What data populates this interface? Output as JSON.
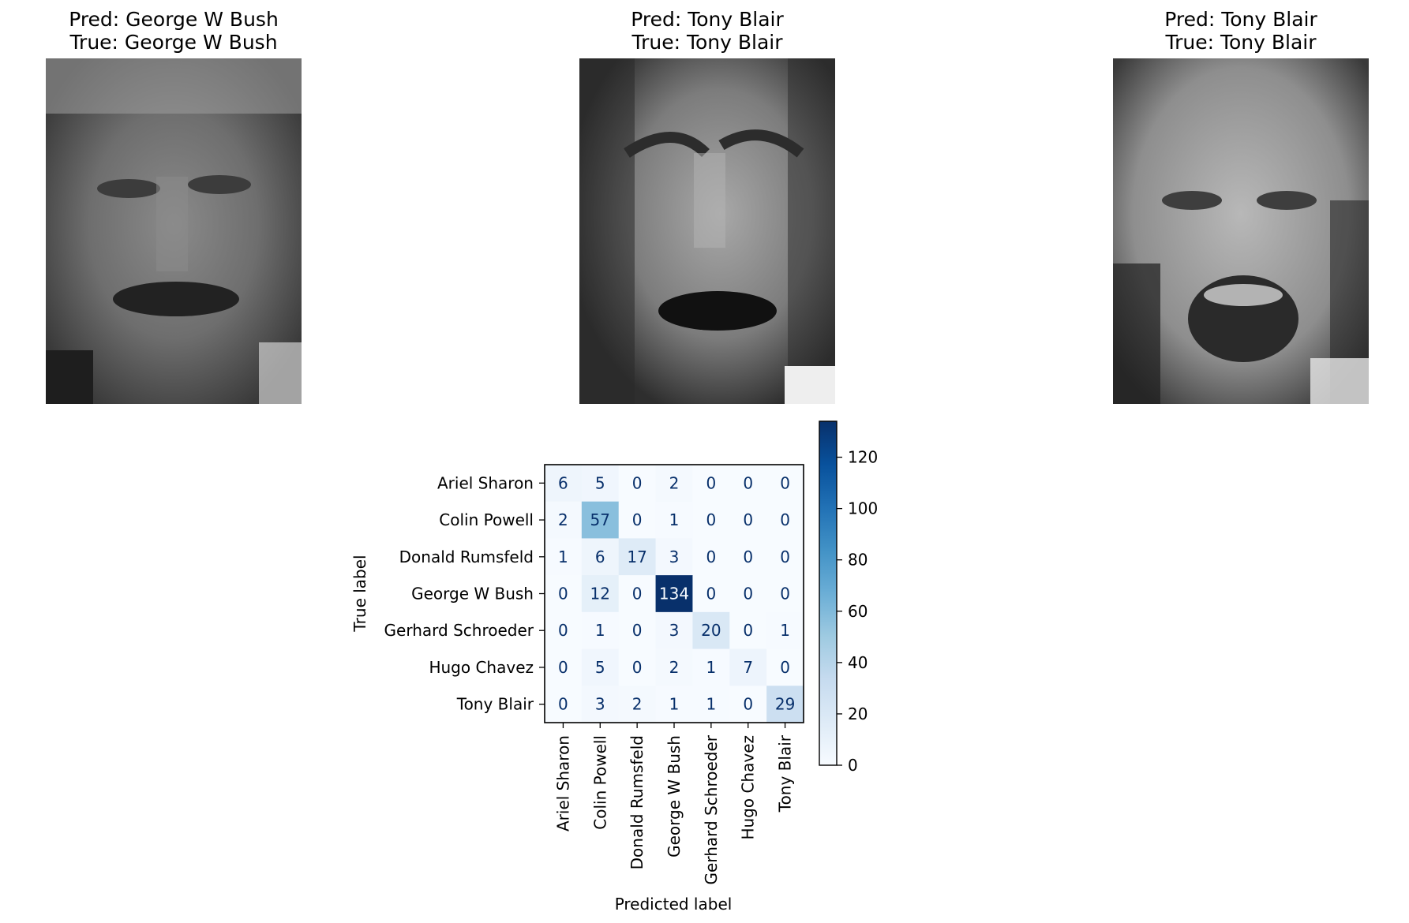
{
  "panels": [
    {
      "pred": "Pred: George W Bush",
      "true": "True: George W Bush",
      "subject": "face portrait (George W Bush)"
    },
    {
      "pred": "Pred: Tony Blair",
      "true": "True: Tony Blair",
      "subject": "face portrait (Tony Blair)"
    },
    {
      "pred": "Pred: Tony Blair",
      "true": "True: Tony Blair",
      "subject": "face portrait (Tony Blair)"
    }
  ],
  "chart_data": {
    "type": "heatmap",
    "xlabel": "Predicted label",
    "ylabel": "True label",
    "categories": [
      "Ariel Sharon",
      "Colin Powell",
      "Donald Rumsfeld",
      "George W Bush",
      "Gerhard Schroeder",
      "Hugo Chavez",
      "Tony Blair"
    ],
    "matrix": [
      [
        6,
        5,
        0,
        2,
        0,
        0,
        0
      ],
      [
        2,
        57,
        0,
        1,
        0,
        0,
        0
      ],
      [
        1,
        6,
        17,
        3,
        0,
        0,
        0
      ],
      [
        0,
        12,
        0,
        134,
        0,
        0,
        0
      ],
      [
        0,
        1,
        0,
        3,
        20,
        0,
        1
      ],
      [
        0,
        5,
        0,
        2,
        1,
        7,
        0
      ],
      [
        0,
        3,
        2,
        1,
        1,
        0,
        29
      ]
    ],
    "colormap": "Blues",
    "colorbar": {
      "range": [
        0,
        134
      ],
      "ticks": [
        0,
        20,
        40,
        60,
        80,
        100,
        120
      ]
    },
    "colors": {
      "low": "#f7fbff",
      "high": "#08306b",
      "text_dark": "#08306b",
      "text_light": "#f7fbff"
    }
  }
}
